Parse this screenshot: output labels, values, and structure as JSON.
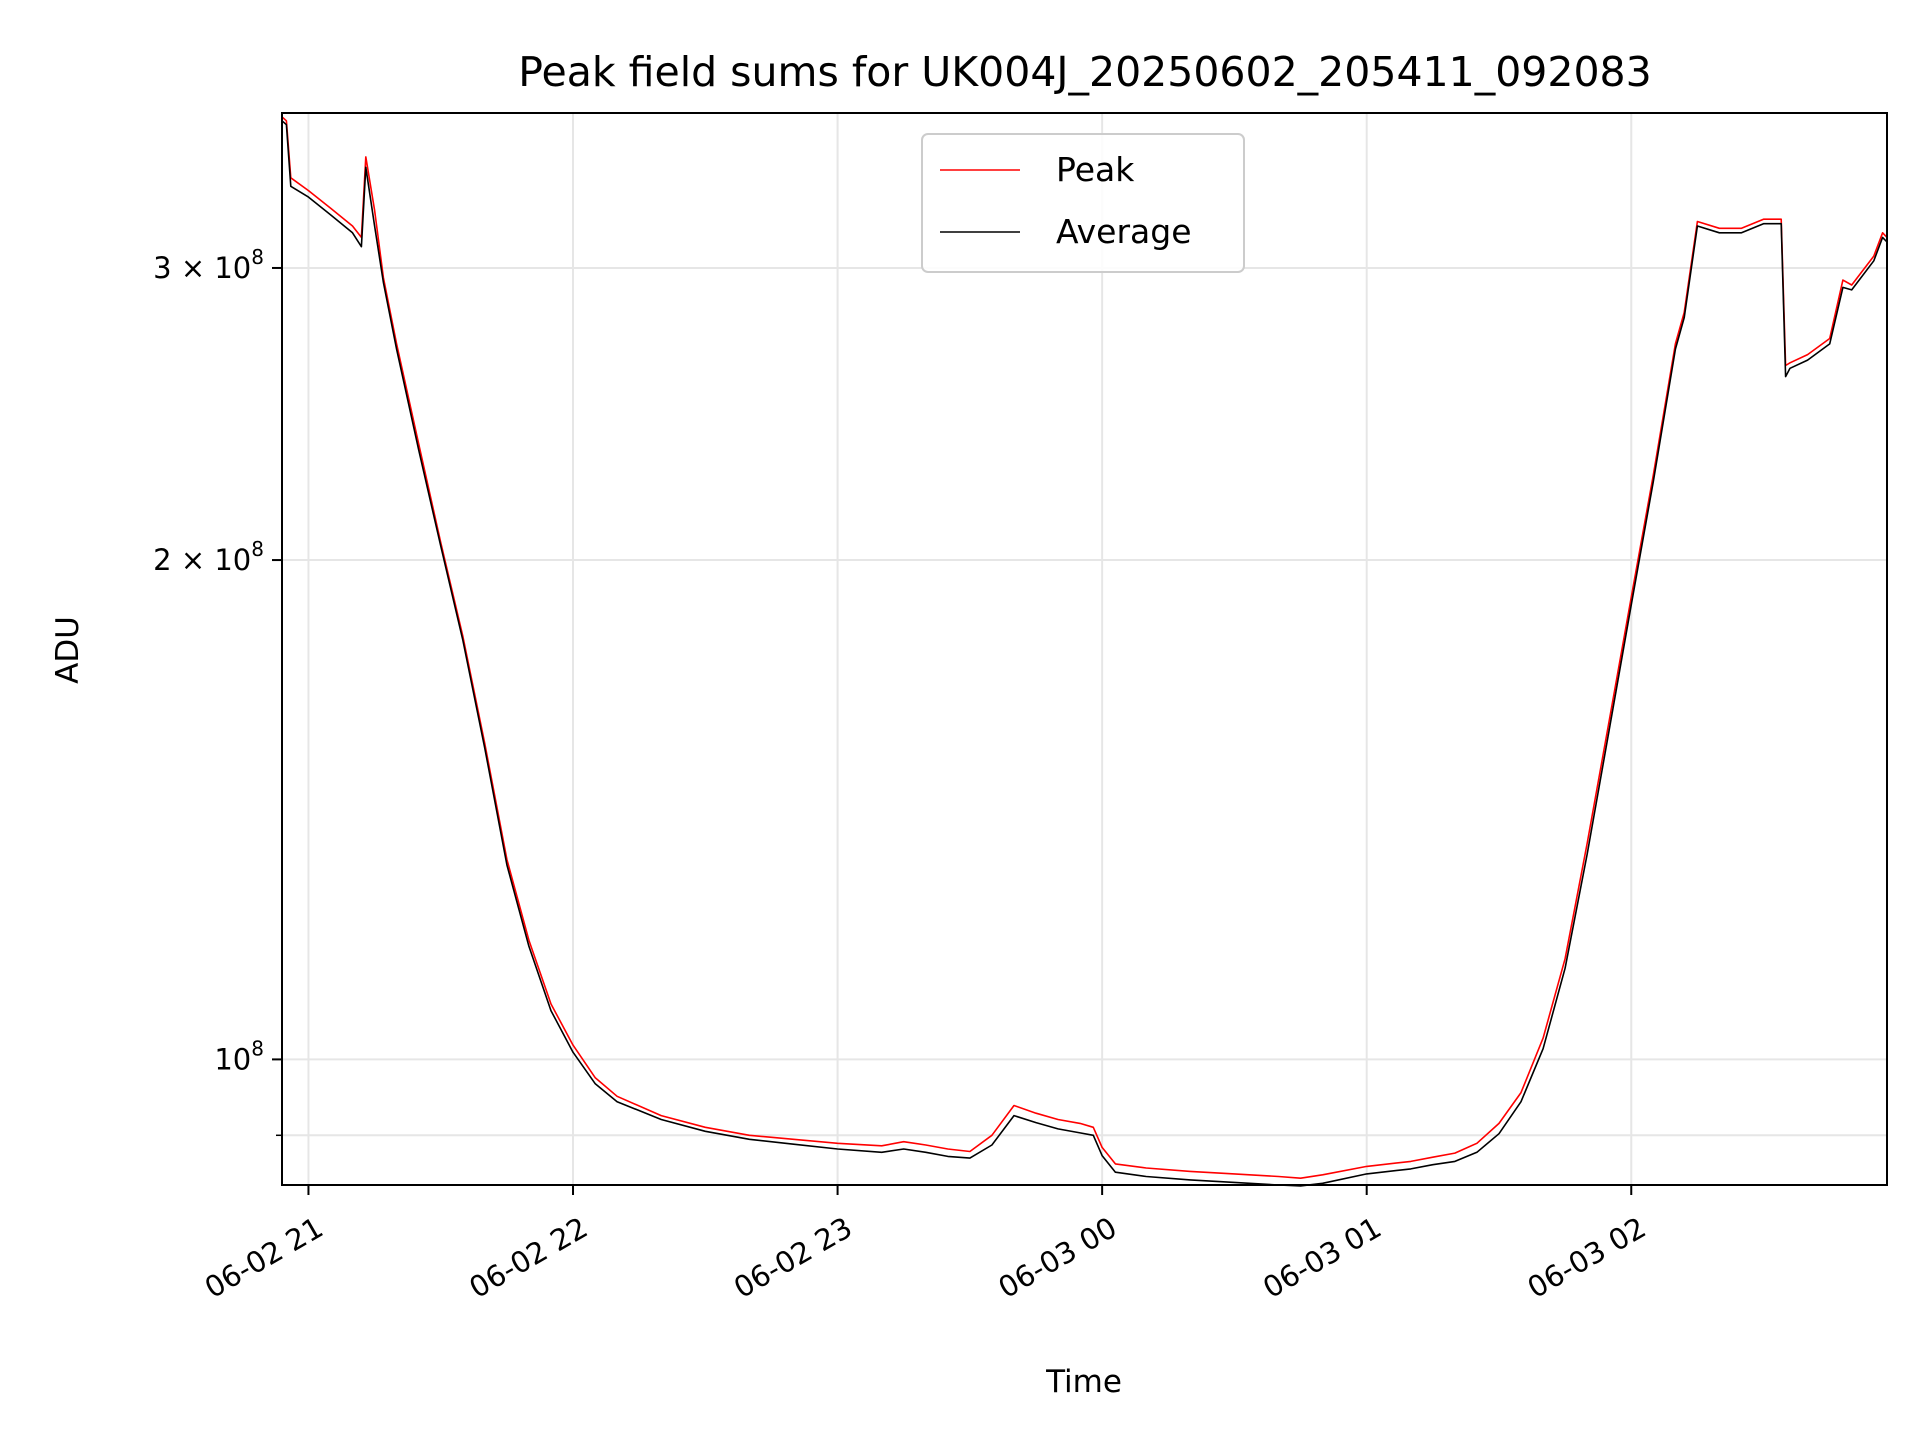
{
  "chart_data": {
    "type": "line",
    "title": "Peak field sums for UK004J_20250602_205411_092083",
    "xlabel": "Time",
    "ylabel": "ADU",
    "yscale": "log",
    "grid": true,
    "legend_position": "top-center",
    "xlim": [
      "2025-06-02 20:54",
      "2025-06-03 02:58"
    ],
    "ylim": [
      84000000,
      372000000
    ],
    "x_ticks": [
      {
        "value": "2025-06-02 21:00",
        "label": "06-02 21"
      },
      {
        "value": "2025-06-02 22:00",
        "label": "06-02 22"
      },
      {
        "value": "2025-06-02 23:00",
        "label": "06-02 23"
      },
      {
        "value": "2025-06-03 00:00",
        "label": "06-03 00"
      },
      {
        "value": "2025-06-03 01:00",
        "label": "06-03 01"
      },
      {
        "value": "2025-06-03 02:00",
        "label": "06-03 02"
      }
    ],
    "y_ticks": [
      {
        "value": 100000000,
        "base": "10",
        "exp": "8"
      },
      {
        "value": 200000000,
        "base": "2 × 10",
        "exp": "8"
      },
      {
        "value": 300000000,
        "base": "3 × 10",
        "exp": "8"
      }
    ],
    "y_minor_ticks": [
      90000000
    ],
    "x": [
      "2025-06-02 20:54",
      "2025-06-02 20:55",
      "2025-06-02 20:56",
      "2025-06-02 21:00",
      "2025-06-02 21:05",
      "2025-06-02 21:10",
      "2025-06-02 21:12",
      "2025-06-02 21:13",
      "2025-06-02 21:15",
      "2025-06-02 21:17",
      "2025-06-02 21:20",
      "2025-06-02 21:25",
      "2025-06-02 21:30",
      "2025-06-02 21:35",
      "2025-06-02 21:40",
      "2025-06-02 21:45",
      "2025-06-02 21:50",
      "2025-06-02 21:55",
      "2025-06-02 22:00",
      "2025-06-02 22:05",
      "2025-06-02 22:10",
      "2025-06-02 22:20",
      "2025-06-02 22:30",
      "2025-06-02 22:40",
      "2025-06-02 22:50",
      "2025-06-02 23:00",
      "2025-06-02 23:10",
      "2025-06-02 23:15",
      "2025-06-02 23:20",
      "2025-06-02 23:25",
      "2025-06-02 23:30",
      "2025-06-02 23:35",
      "2025-06-02 23:40",
      "2025-06-02 23:45",
      "2025-06-02 23:50",
      "2025-06-02 23:55",
      "2025-06-02 23:58",
      "2025-06-03 00:00",
      "2025-06-03 00:03",
      "2025-06-03 00:10",
      "2025-06-03 00:20",
      "2025-06-03 00:30",
      "2025-06-03 00:40",
      "2025-06-03 00:45",
      "2025-06-03 00:50",
      "2025-06-03 01:00",
      "2025-06-03 01:10",
      "2025-06-03 01:15",
      "2025-06-03 01:20",
      "2025-06-03 01:25",
      "2025-06-03 01:30",
      "2025-06-03 01:35",
      "2025-06-03 01:40",
      "2025-06-03 01:45",
      "2025-06-03 01:50",
      "2025-06-03 01:55",
      "2025-06-03 02:00",
      "2025-06-03 02:05",
      "2025-06-03 02:10",
      "2025-06-03 02:12",
      "2025-06-03 02:15",
      "2025-06-03 02:20",
      "2025-06-03 02:25",
      "2025-06-03 02:30",
      "2025-06-03 02:34",
      "2025-06-03 02:35",
      "2025-06-03 02:36",
      "2025-06-03 02:40",
      "2025-06-03 02:45",
      "2025-06-03 02:48",
      "2025-06-03 02:50",
      "2025-06-03 02:55",
      "2025-06-03 02:57",
      "2025-06-03 02:58"
    ],
    "series": [
      {
        "name": "Peak",
        "color": "#ff0000",
        "values": [
          370000000,
          368000000,
          340000000,
          334000000,
          326000000,
          318000000,
          313000000,
          350000000,
          325000000,
          296000000,
          270000000,
          235000000,
          205000000,
          180000000,
          155000000,
          132000000,
          118000000,
          108000000,
          102000000,
          97500000,
          95000000,
          92500000,
          91000000,
          90000000,
          89500000,
          89000000,
          88700000,
          89200000,
          88800000,
          88300000,
          88000000,
          90000000,
          93800000,
          92800000,
          92000000,
          91500000,
          91000000,
          88500000,
          86500000,
          86000000,
          85600000,
          85300000,
          85000000,
          84800000,
          85200000,
          86200000,
          86800000,
          87300000,
          87800000,
          89000000,
          91500000,
          95500000,
          103000000,
          115000000,
          135000000,
          160000000,
          190000000,
          225000000,
          270000000,
          282000000,
          320000000,
          317000000,
          317000000,
          321000000,
          321000000,
          262000000,
          263000000,
          266000000,
          272000000,
          295000000,
          293000000,
          305000000,
          315000000,
          313000000
        ]
      },
      {
        "name": "Average",
        "color": "#000000",
        "values": [
          368000000,
          366000000,
          336000000,
          331000000,
          323000000,
          315000000,
          309000000,
          345000000,
          318000000,
          294000000,
          268000000,
          233000000,
          204000000,
          179000000,
          154000000,
          131000000,
          117000000,
          107000000,
          101000000,
          96700000,
          94300000,
          92000000,
          90500000,
          89500000,
          88900000,
          88300000,
          87900000,
          88300000,
          87900000,
          87400000,
          87200000,
          88800000,
          92500000,
          91600000,
          90800000,
          90300000,
          90000000,
          87500000,
          85500000,
          85000000,
          84600000,
          84300000,
          84000000,
          83900000,
          84200000,
          85300000,
          85900000,
          86400000,
          86800000,
          87900000,
          90200000,
          94300000,
          101500000,
          113500000,
          133000000,
          158000000,
          188000000,
          223000000,
          268000000,
          280000000,
          318000000,
          315000000,
          315000000,
          319000000,
          319000000,
          258000000,
          261000000,
          264000000,
          270000000,
          292000000,
          291000000,
          303000000,
          313000000,
          311000000
        ]
      }
    ]
  }
}
